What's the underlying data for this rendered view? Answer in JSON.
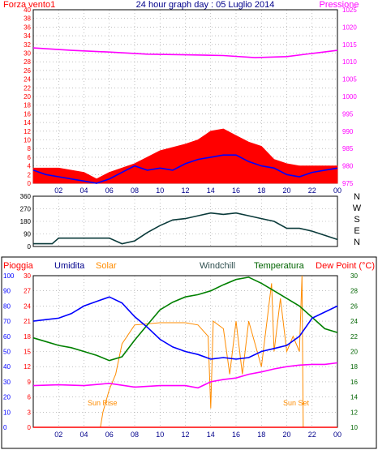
{
  "chart_data": [
    {
      "type": "line",
      "title": "24 hour graph day : 05 Luglio 2014",
      "left_label": "Forza vento1",
      "right_label": "Pressione",
      "x_ticks": [
        "02",
        "04",
        "06",
        "08",
        "10",
        "12",
        "14",
        "16",
        "18",
        "20",
        "22",
        "00"
      ],
      "left_ticks": [
        "0",
        "2",
        "4",
        "6",
        "8",
        "10",
        "12",
        "14",
        "16",
        "18",
        "20",
        "22",
        "24",
        "26",
        "28",
        "30",
        "32",
        "34",
        "36",
        "38",
        "40"
      ],
      "right_ticks": [
        "975",
        "980",
        "985",
        "990",
        "995",
        "1000",
        "1005",
        "1010",
        "1015",
        "1020",
        "1025"
      ],
      "ylim_left": [
        0,
        40
      ],
      "ylim_right": [
        975,
        1025
      ],
      "series": [
        {
          "name": "Pressione",
          "axis": "right",
          "color": "#ff00ff",
          "x": [
            0,
            3,
            6,
            9,
            12,
            15,
            17.5,
            20,
            22,
            24
          ],
          "values": [
            1014.0,
            1013.3,
            1012.8,
            1012.2,
            1012.0,
            1011.8,
            1011.2,
            1011.5,
            1012.4,
            1013.3
          ]
        },
        {
          "color": "#ff0000",
          "style": "bars",
          "x": [
            0,
            2,
            4,
            5,
            6,
            8,
            10,
            12,
            13,
            14,
            15,
            16,
            17,
            18,
            19,
            20,
            21,
            22,
            24
          ],
          "values": [
            3.5,
            3.5,
            2.5,
            1.0,
            2.5,
            4.5,
            7.5,
            9.0,
            10.0,
            12.0,
            12.5,
            11.0,
            9.5,
            8.5,
            5.5,
            4.5,
            4.0,
            4.0,
            4.0
          ]
        },
        {
          "color": "#0000ff",
          "x": [
            0,
            1,
            2,
            3,
            4,
            5,
            6,
            7,
            8,
            9,
            10,
            11,
            12,
            13,
            14,
            15,
            16,
            17,
            18,
            19,
            20,
            21,
            22,
            23,
            24
          ],
          "values": [
            3.0,
            2.0,
            1.5,
            1.0,
            0.5,
            0.0,
            1.0,
            2.5,
            4.0,
            3.0,
            3.5,
            3.0,
            4.5,
            5.5,
            6.0,
            6.5,
            6.5,
            5.0,
            4.0,
            3.5,
            2.0,
            1.5,
            2.5,
            3.0,
            3.5
          ]
        }
      ]
    },
    {
      "type": "line",
      "right_ticks": [
        "0",
        "90",
        "180",
        "270",
        "360"
      ],
      "compass_labels": [
        "N",
        "W",
        "S",
        "E",
        "N"
      ],
      "ylim": [
        0,
        360
      ],
      "series": [
        {
          "color": "#0a3a3a",
          "x": [
            0,
            1.5,
            2,
            4,
            6,
            7,
            8,
            9,
            10,
            11,
            12,
            13,
            14,
            15,
            16,
            17,
            18,
            19,
            20,
            21,
            22,
            23,
            24
          ],
          "values": [
            20,
            20,
            60,
            60,
            60,
            20,
            40,
            100,
            150,
            190,
            200,
            220,
            240,
            230,
            240,
            220,
            200,
            180,
            130,
            130,
            110,
            80,
            50
          ]
        }
      ]
    },
    {
      "type": "line",
      "top_labels": [
        "Pioggia",
        "Umidita",
        "Solar",
        "Windchill",
        "Temperatura",
        "Dew Point (°C)"
      ],
      "left_outer_ticks": [
        "0",
        "10",
        "20",
        "30",
        "40",
        "50",
        "60",
        "70",
        "80",
        "90",
        "100"
      ],
      "left_inner_ticks": [
        "0",
        "3",
        "6",
        "9",
        "12",
        "15",
        "18",
        "21",
        "24",
        "27",
        "30"
      ],
      "right_ticks": [
        "10",
        "12",
        "14",
        "16",
        "18",
        "20",
        "22",
        "24",
        "26",
        "28",
        "30"
      ],
      "x_ticks": [
        "02",
        "04",
        "06",
        "08",
        "10",
        "12",
        "14",
        "16",
        "18",
        "20",
        "22",
        "00"
      ],
      "annotations": [
        "Sun Rise",
        "Sun Set"
      ],
      "ylim_left": [
        0,
        100
      ],
      "ylim_right": [
        10,
        30
      ],
      "series": [
        {
          "name": "Umidita",
          "axis": "left",
          "color": "#0000ff",
          "x": [
            0,
            1,
            2,
            3,
            4,
            5,
            6,
            7,
            8,
            9,
            10,
            11,
            12,
            13,
            14,
            15,
            16,
            17,
            18,
            19,
            20,
            21,
            22,
            23,
            24
          ],
          "values": [
            70,
            71,
            72,
            75,
            80,
            83,
            86,
            82,
            73,
            66,
            58,
            53,
            50,
            48,
            45,
            46,
            45,
            46,
            50,
            52,
            54,
            60,
            72,
            76,
            80
          ]
        },
        {
          "name": "Temperatura",
          "axis": "right",
          "color": "#008000",
          "x": [
            0,
            1,
            2,
            3,
            4,
            5,
            6,
            7,
            8,
            9,
            10,
            11,
            12,
            13,
            14,
            15,
            16,
            17,
            18,
            19,
            20,
            21,
            22,
            23,
            24
          ],
          "values": [
            21.8,
            21.3,
            20.8,
            20.5,
            20.0,
            19.5,
            18.8,
            19.3,
            21.5,
            23.5,
            25.5,
            26.5,
            27.2,
            27.5,
            28.0,
            28.8,
            29.5,
            29.8,
            29.0,
            28.0,
            27.0,
            26.0,
            24.5,
            23.0,
            22.5
          ]
        },
        {
          "name": "Dew Point (°C)",
          "axis": "right",
          "color": "#ff00ff",
          "x": [
            0,
            2,
            4,
            6,
            8,
            10,
            12,
            13,
            14,
            15,
            16,
            17,
            18,
            19,
            20,
            21,
            22,
            23,
            24
          ],
          "values": [
            15.5,
            15.6,
            15.5,
            15.8,
            15.3,
            15.5,
            15.5,
            15.2,
            16.0,
            16.3,
            16.5,
            17.0,
            17.3,
            17.7,
            18.0,
            18.2,
            18.3,
            18.3,
            18.5
          ]
        },
        {
          "name": "Solar",
          "axis": "right",
          "color": "#ff8c00",
          "x": [
            0,
            5.3,
            5.5,
            6,
            6.5,
            7,
            8,
            10,
            12,
            13,
            13.8,
            14,
            14.2,
            15,
            15.5,
            16,
            16.5,
            17,
            18,
            18.8,
            19,
            19.5,
            20,
            20.5,
            21,
            21.2,
            21.3,
            24
          ],
          "values": [
            10,
            10,
            12,
            15,
            17,
            21,
            23.5,
            23.8,
            23.8,
            23.5,
            22,
            12.5,
            24,
            23,
            17,
            24,
            17,
            24,
            18,
            29,
            20,
            27,
            20,
            22,
            20,
            30,
            10,
            10
          ]
        },
        {
          "name": "Pioggia",
          "axis": "left",
          "color": "#ff0000",
          "x": [
            0,
            24
          ],
          "values": [
            0,
            0
          ]
        }
      ]
    }
  ]
}
